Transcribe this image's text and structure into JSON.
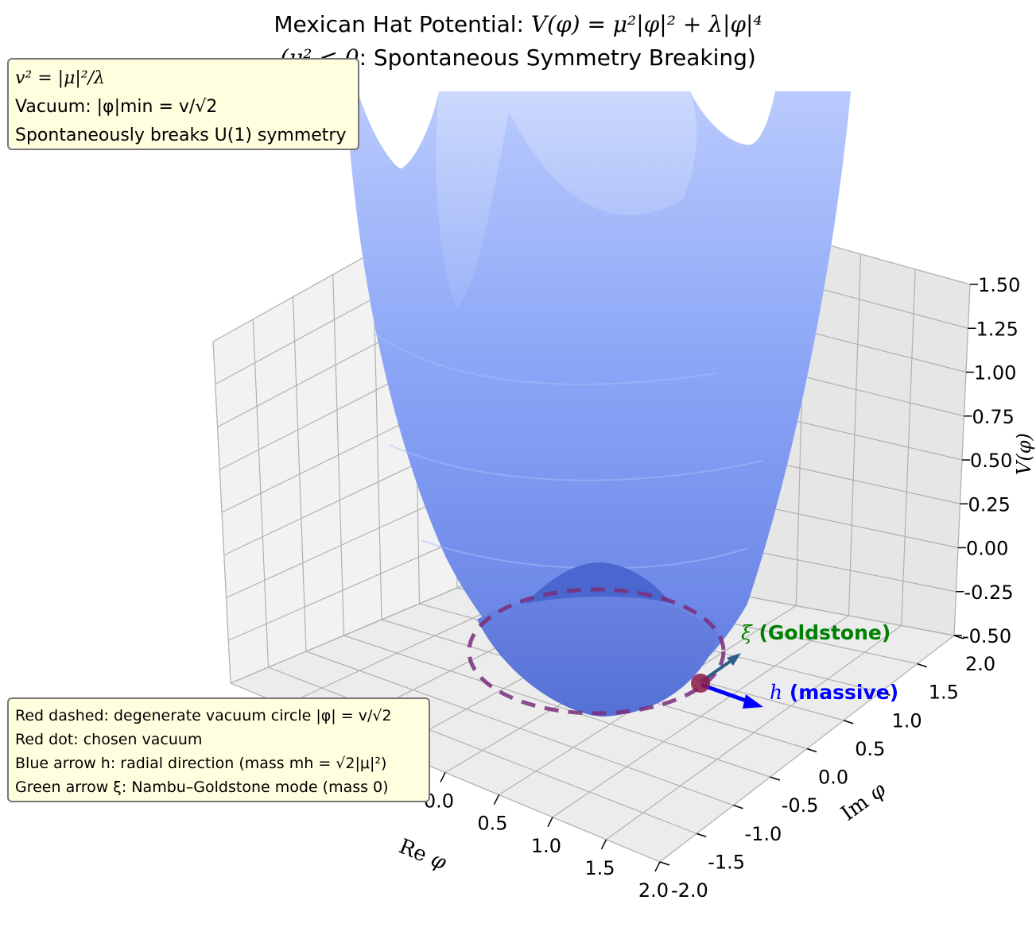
{
  "title_line1_text": "Mexican Hat Potential: ",
  "title_line1_math": "V(φ) = μ²|φ|² + λ|φ|⁴",
  "title_line2_math": "(μ² < 0",
  "title_line2_text": ": Spontaneous Symmetry Breaking)",
  "info_top": {
    "line1": "v² = |μ|²/λ",
    "line2": "Vacuum: |φ|min = v/√2",
    "line3": "Spontaneously breaks U(1) symmetry"
  },
  "info_bottom": {
    "line1": "Red dashed: degenerate vacuum circle |φ| = v/√2",
    "line2": "Red dot: chosen vacuum",
    "line3": "Blue arrow h: radial direction (mass mh = √2|μ|²)",
    "line4": "Green arrow ξ: Nambu–Goldstone mode (mass 0)"
  },
  "annotations": {
    "goldstone_symbol": "ξ",
    "goldstone_text": " (Goldstone)",
    "massive_symbol": "h",
    "massive_text": " (massive)"
  },
  "colors": {
    "surface": "#6f8fef",
    "surface_light": "#b7c8fb",
    "vacuum_circle": "#7a2e7a",
    "chosen_vacuum": "#8b1a4a",
    "massive_arrow": "#0000ff",
    "goldstone_arrow": "#2d5f8a",
    "goldstone_label": "#008000",
    "grid": "#b0b0b0",
    "pane_left": "#f2f2f2",
    "pane_right": "#e6e6e6",
    "pane_floor": "#ececec",
    "info_box": "#ffffe0"
  },
  "chart_data": {
    "type": "surface3d",
    "function": "V(φ) = μ²|φ|² + λ|φ|⁴ with μ² < 0",
    "xlabel": "Re φ",
    "ylabel": "Im φ",
    "zlabel": "V(φ)",
    "x_ticks": [
      "0.0",
      "0.5",
      "1.0",
      "1.5",
      "2.0"
    ],
    "y_ticks": [
      "-2.0",
      "-1.5",
      "-1.0",
      "-0.5",
      "0.0",
      "0.5",
      "1.0",
      "1.5",
      "2.0"
    ],
    "z_ticks": [
      "-0.50",
      "-0.25",
      "0.00",
      "0.25",
      "0.50",
      "0.75",
      "1.00",
      "1.25",
      "1.50"
    ],
    "zlim": [
      -0.5,
      1.5
    ],
    "grid": true,
    "vacuum_circle_style": "dashed",
    "arrows": [
      "h (massive)",
      "ξ (Goldstone)"
    ]
  }
}
